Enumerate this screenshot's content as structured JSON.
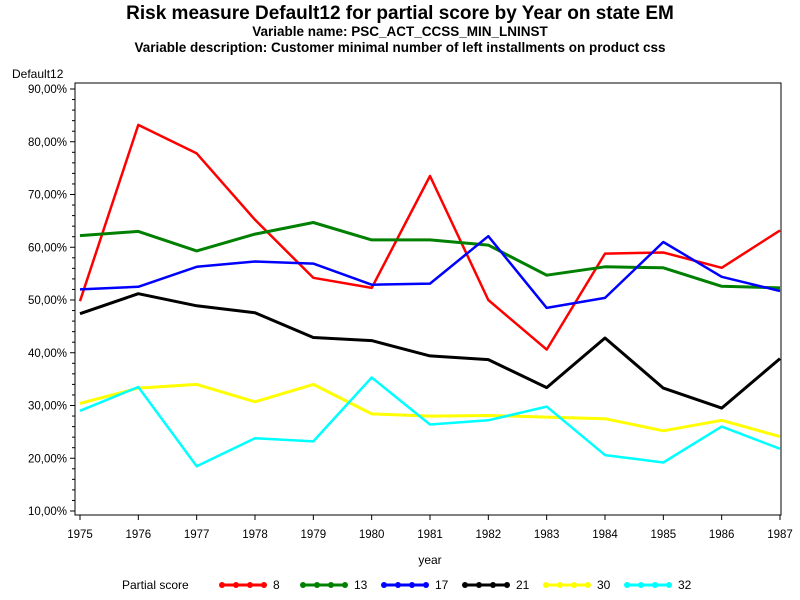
{
  "chart_data": {
    "type": "line",
    "title": "Risk measure Default12 for partial score by Year on state EM",
    "subtitles": [
      "Variable name: PSC_ACT_CCSS_MIN_LNINST",
      "Variable description: Customer minimal number of left installments on product css"
    ],
    "xlabel": "year",
    "ylabel": "Default12",
    "x": [
      1975,
      1976,
      1977,
      1978,
      1979,
      1980,
      1981,
      1982,
      1983,
      1984,
      1985,
      1986,
      1987
    ],
    "ylim": [
      10,
      90
    ],
    "yticks": [
      "10,00%",
      "20,00%",
      "30,00%",
      "40,00%",
      "50,00%",
      "60,00%",
      "70,00%",
      "80,00%",
      "90,00%"
    ],
    "legend_title": "Partial score",
    "legend_placement": "bottom",
    "grid": false,
    "series": [
      {
        "name": "8",
        "color": "#ff0000",
        "values": [
          49.8,
          83.2,
          77.8,
          65.2,
          54.2,
          52.3,
          73.5,
          50.0,
          40.6,
          58.8,
          59.0,
          56.1,
          63.2
        ]
      },
      {
        "name": "13",
        "color": "#008000",
        "values": [
          62.2,
          63.0,
          59.3,
          62.5,
          64.7,
          61.4,
          61.4,
          60.4,
          54.7,
          56.3,
          56.1,
          52.6,
          52.3
        ]
      },
      {
        "name": "17",
        "color": "#0000ff",
        "values": [
          52.0,
          52.5,
          56.3,
          57.3,
          56.9,
          52.9,
          53.1,
          62.1,
          48.5,
          50.4,
          61.0,
          54.4,
          51.7
        ]
      },
      {
        "name": "21",
        "color": "#000000",
        "values": [
          47.4,
          51.2,
          48.9,
          47.6,
          42.9,
          42.3,
          39.4,
          38.7,
          33.4,
          42.8,
          33.3,
          29.5,
          38.9
        ]
      },
      {
        "name": "30",
        "color": "#ffff00",
        "values": [
          30.4,
          33.3,
          34.0,
          30.7,
          34.0,
          28.4,
          28.0,
          28.1,
          27.8,
          27.5,
          25.2,
          27.2,
          24.1
        ]
      },
      {
        "name": "32",
        "color": "#00ffff",
        "values": [
          29.0,
          33.5,
          18.5,
          23.8,
          23.2,
          35.3,
          26.4,
          27.2,
          29.8,
          20.6,
          19.2,
          26.0,
          21.8
        ]
      }
    ]
  }
}
